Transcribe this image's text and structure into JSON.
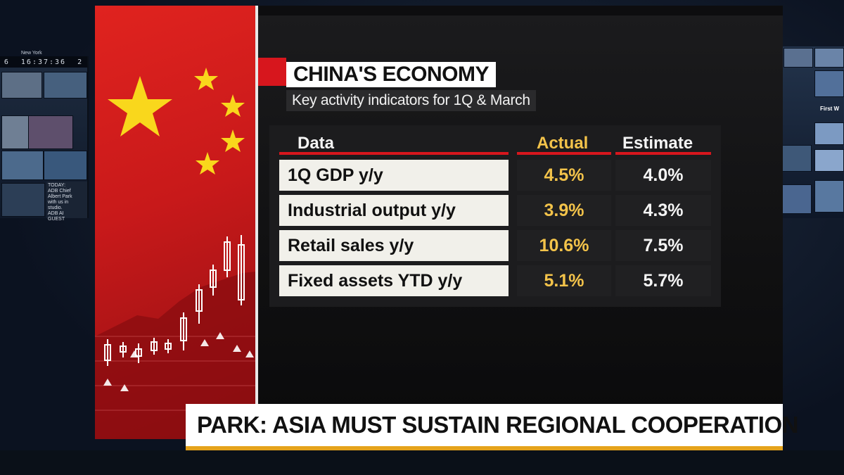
{
  "studio": {
    "clock": "16:37:36",
    "clock_left": "6",
    "clock_right": "2",
    "city": "New York",
    "guest_lines": [
      "TODAY:",
      "ADB Chief",
      "Albert Park",
      "with us in",
      "studio.",
      "ADB AI",
      "GUEST"
    ],
    "right_label": "First W"
  },
  "graphic": {
    "title": "CHINA'S ECONOMY",
    "subtitle": "Key activity indicators for 1Q & March",
    "flag_icon": "china-flag-icon",
    "colors": {
      "flag_red": "#d7161d",
      "star_yellow": "#f9d71c",
      "actual_gold": "#f3c34a",
      "ticker_amber": "#e5a31b"
    }
  },
  "table": {
    "columns": {
      "data": "Data",
      "actual": "Actual",
      "estimate": "Estimate"
    },
    "rows": [
      {
        "label": "1Q GDP y/y",
        "actual": "4.5%",
        "estimate": "4.0%"
      },
      {
        "label": "Industrial output y/y",
        "actual": "3.9%",
        "estimate": "4.3%"
      },
      {
        "label": "Retail sales y/y",
        "actual": "10.6%",
        "estimate": "7.5%"
      },
      {
        "label": "Fixed assets YTD y/y",
        "actual": "5.1%",
        "estimate": "5.7%"
      }
    ]
  },
  "lower_third": {
    "headline": "PARK: ASIA MUST SUSTAIN REGIONAL COOPERATION"
  }
}
